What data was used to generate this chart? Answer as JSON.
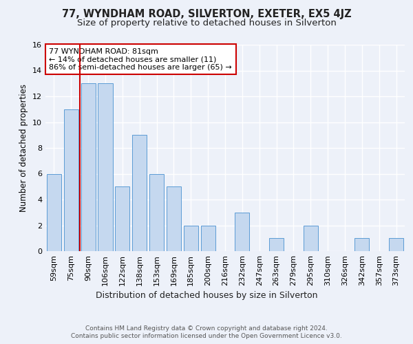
{
  "title": "77, WYNDHAM ROAD, SILVERTON, EXETER, EX5 4JZ",
  "subtitle": "Size of property relative to detached houses in Silverton",
  "xlabel": "Distribution of detached houses by size in Silverton",
  "ylabel": "Number of detached properties",
  "categories": [
    "59sqm",
    "75sqm",
    "90sqm",
    "106sqm",
    "122sqm",
    "138sqm",
    "153sqm",
    "169sqm",
    "185sqm",
    "200sqm",
    "216sqm",
    "232sqm",
    "247sqm",
    "263sqm",
    "279sqm",
    "295sqm",
    "310sqm",
    "326sqm",
    "342sqm",
    "357sqm",
    "373sqm"
  ],
  "values": [
    6,
    11,
    13,
    13,
    5,
    9,
    6,
    5,
    2,
    2,
    0,
    3,
    0,
    1,
    0,
    2,
    0,
    0,
    1,
    0,
    1
  ],
  "bar_color": "#c5d8ef",
  "bar_edge_color": "#5b9bd5",
  "red_line_color": "#cc0000",
  "red_line_x": 1.5,
  "annotation_text": "77 WYNDHAM ROAD: 81sqm\n← 14% of detached houses are smaller (11)\n86% of semi-detached houses are larger (65) →",
  "annotation_box_color": "#ffffff",
  "annotation_box_edge_color": "#cc0000",
  "footer_line1": "Contains HM Land Registry data © Crown copyright and database right 2024.",
  "footer_line2": "Contains public sector information licensed under the Open Government Licence v3.0.",
  "ylim": [
    0,
    16
  ],
  "yticks": [
    0,
    2,
    4,
    6,
    8,
    10,
    12,
    14,
    16
  ],
  "background_color": "#edf1f9",
  "grid_color": "#ffffff",
  "title_fontsize": 10.5,
  "subtitle_fontsize": 9.5,
  "ylabel_fontsize": 8.5,
  "xlabel_fontsize": 9,
  "tick_fontsize": 8,
  "annotation_fontsize": 8,
  "footer_fontsize": 6.5
}
